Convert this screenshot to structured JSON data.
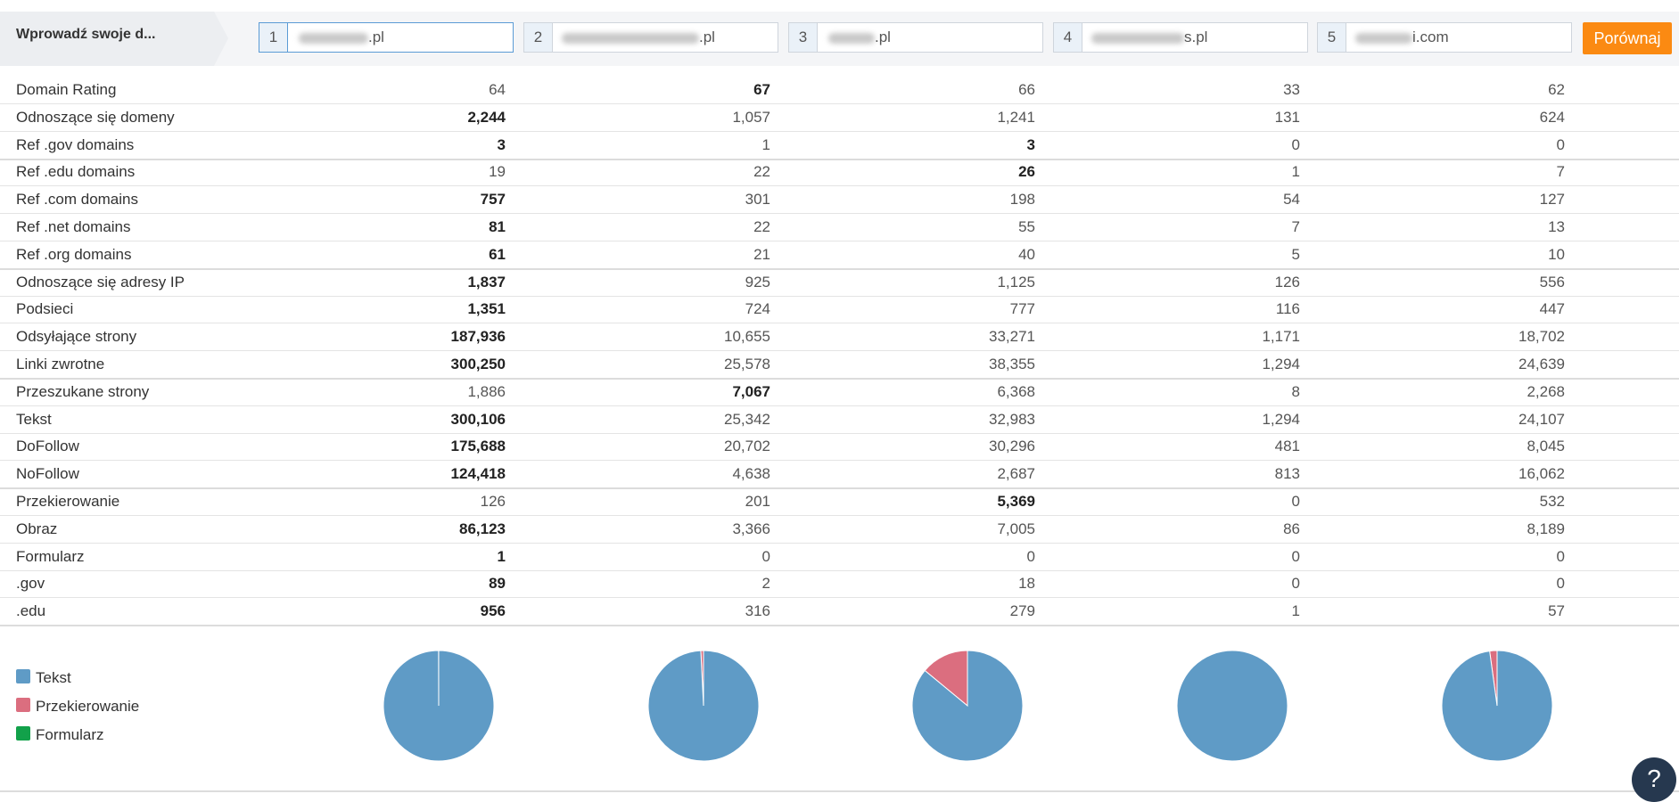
{
  "header": {
    "prompt": "Wprowadź swoje d...",
    "compare_label": "Porównaj",
    "domains": [
      {
        "num": "1",
        "suffix": ".pl"
      },
      {
        "num": "2",
        "suffix": ".pl"
      },
      {
        "num": "3",
        "suffix": ".pl"
      },
      {
        "num": "4",
        "suffix": "s.pl"
      },
      {
        "num": "5",
        "suffix": "i.com"
      }
    ]
  },
  "metrics": [
    {
      "label": "Domain Rating",
      "values": [
        "64",
        "67",
        "66",
        "33",
        "62"
      ],
      "bold": [
        1
      ]
    },
    {
      "label": "Odnoszące się domeny",
      "values": [
        "2,244",
        "1,057",
        "1,241",
        "131",
        "624"
      ],
      "bold": [
        0
      ]
    },
    {
      "label": "Ref .gov domains",
      "values": [
        "3",
        "1",
        "3",
        "0",
        "0"
      ],
      "bold": [
        0,
        2
      ]
    },
    {
      "label": "Ref .edu domains",
      "values": [
        "19",
        "22",
        "26",
        "1",
        "7"
      ],
      "bold": [
        2
      ]
    },
    {
      "label": "Ref .com domains",
      "values": [
        "757",
        "301",
        "198",
        "54",
        "127"
      ],
      "bold": [
        0
      ]
    },
    {
      "label": "Ref .net domains",
      "values": [
        "81",
        "22",
        "55",
        "7",
        "13"
      ],
      "bold": [
        0
      ]
    },
    {
      "label": "Ref .org domains",
      "values": [
        "61",
        "21",
        "40",
        "5",
        "10"
      ],
      "bold": [
        0
      ]
    },
    {
      "label": "Odnoszące się adresy IP",
      "values": [
        "1,837",
        "925",
        "1,125",
        "126",
        "556"
      ],
      "bold": [
        0
      ]
    },
    {
      "label": "Podsieci",
      "values": [
        "1,351",
        "724",
        "777",
        "116",
        "447"
      ],
      "bold": [
        0
      ]
    },
    {
      "label": "Odsyłające strony",
      "values": [
        "187,936",
        "10,655",
        "33,271",
        "1,171",
        "18,702"
      ],
      "bold": [
        0
      ]
    },
    {
      "label": "Linki zwrotne",
      "values": [
        "300,250",
        "25,578",
        "38,355",
        "1,294",
        "24,639"
      ],
      "bold": [
        0
      ]
    },
    {
      "label": "Przeszukane strony",
      "values": [
        "1,886",
        "7,067",
        "6,368",
        "8",
        "2,268"
      ],
      "bold": [
        1
      ]
    },
    {
      "label": "Tekst",
      "values": [
        "300,106",
        "25,342",
        "32,983",
        "1,294",
        "24,107"
      ],
      "bold": [
        0
      ]
    },
    {
      "label": "DoFollow",
      "values": [
        "175,688",
        "20,702",
        "30,296",
        "481",
        "8,045"
      ],
      "bold": [
        0
      ]
    },
    {
      "label": "NoFollow",
      "values": [
        "124,418",
        "4,638",
        "2,687",
        "813",
        "16,062"
      ],
      "bold": [
        0
      ]
    },
    {
      "label": "Przekierowanie",
      "values": [
        "126",
        "201",
        "5,369",
        "0",
        "532"
      ],
      "bold": [
        2
      ]
    },
    {
      "label": "Obraz",
      "values": [
        "86,123",
        "3,366",
        "7,005",
        "86",
        "8,189"
      ],
      "bold": [
        0
      ]
    },
    {
      "label": "Formularz",
      "values": [
        "1",
        "0",
        "0",
        "0",
        "0"
      ],
      "bold": [
        0
      ]
    },
    {
      "label": ".gov",
      "values": [
        "89",
        "2",
        "18",
        "0",
        "0"
      ],
      "bold": [
        0
      ]
    },
    {
      "label": ".edu",
      "values": [
        "956",
        "316",
        "279",
        "1",
        "57"
      ],
      "bold": [
        0
      ]
    }
  ],
  "legend": [
    {
      "label": "Tekst",
      "color": "#5f9bc6"
    },
    {
      "label": "Przekierowanie",
      "color": "#db6e7f"
    },
    {
      "label": "Formularz",
      "color": "#12a14a"
    }
  ],
  "pies": [
    {
      "tekst": 300106,
      "przekierowanie": 126,
      "formularz": 1
    },
    {
      "tekst": 25342,
      "przekierowanie": 201,
      "formularz": 0
    },
    {
      "tekst": 32983,
      "przekierowanie": 5369,
      "formularz": 0
    },
    {
      "tekst": 1294,
      "przekierowanie": 0,
      "formularz": 0
    },
    {
      "tekst": 24107,
      "przekierowanie": 532,
      "formularz": 0
    }
  ],
  "help_label": "?"
}
